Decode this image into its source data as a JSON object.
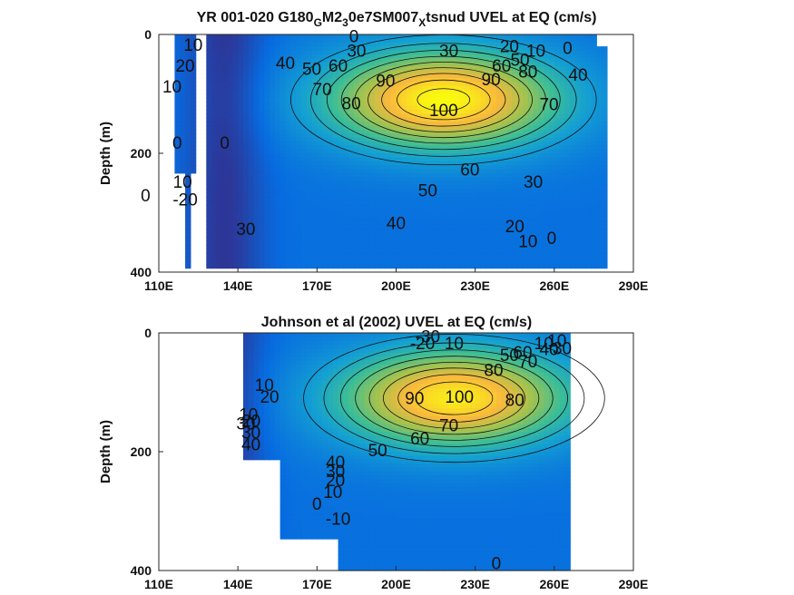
{
  "chart_data": [
    {
      "type": "heatmap",
      "title": "YR 001-020 G180_GM2_30e7SM007_Xtsnud UVEL at EQ (cm/s)",
      "title_parts": {
        "a": "YR 001-020 G180",
        "sub1": "G",
        "b": "M2",
        "sub2": "3",
        "c": "0e7SM007",
        "sub3": "X",
        "d": "tsnud UVEL at EQ (cm/s)"
      },
      "xlabel": "",
      "ylabel": "Depth (m)",
      "xlim": [
        110,
        290
      ],
      "ylim": [
        0,
        400
      ],
      "x_ticks": [
        {
          "v": 110,
          "label": "110E"
        },
        {
          "v": 140,
          "label": "140E"
        },
        {
          "v": 170,
          "label": "170E"
        },
        {
          "v": 200,
          "label": "200E"
        },
        {
          "v": 230,
          "label": "230E"
        },
        {
          "v": 260,
          "label": "260E"
        },
        {
          "v": 290,
          "label": "290E"
        }
      ],
      "y_ticks": [
        {
          "v": 0,
          "label": "0"
        },
        {
          "v": 200,
          "label": "200"
        },
        {
          "v": 400,
          "label": "400"
        }
      ],
      "core": {
        "x": 218,
        "y": 110,
        "max": 105
      },
      "contour_labels": [
        {
          "x": 123,
          "y": 20,
          "text": "10"
        },
        {
          "x": 120,
          "y": 55,
          "text": "20"
        },
        {
          "x": 115,
          "y": 90,
          "text": "10"
        },
        {
          "x": 117,
          "y": 185,
          "text": "0"
        },
        {
          "x": 119,
          "y": 250,
          "text": "10"
        },
        {
          "x": 120,
          "y": 280,
          "text": "-20"
        },
        {
          "x": 105,
          "y": 273,
          "text": "0"
        },
        {
          "x": 143,
          "y": 330,
          "text": "30"
        },
        {
          "x": 158,
          "y": 50,
          "text": "40"
        },
        {
          "x": 168,
          "y": 60,
          "text": "50"
        },
        {
          "x": 178,
          "y": 55,
          "text": "60"
        },
        {
          "x": 172,
          "y": 95,
          "text": "70"
        },
        {
          "x": 183,
          "y": 118,
          "text": "80"
        },
        {
          "x": 196,
          "y": 80,
          "text": "90"
        },
        {
          "x": 218,
          "y": 130,
          "text": "100"
        },
        {
          "x": 184,
          "y": 5,
          "text": "0"
        },
        {
          "x": 185,
          "y": 30,
          "text": "30"
        },
        {
          "x": 220,
          "y": 30,
          "text": "30"
        },
        {
          "x": 240,
          "y": 55,
          "text": "60"
        },
        {
          "x": 236,
          "y": 78,
          "text": "90"
        },
        {
          "x": 250,
          "y": 65,
          "text": "80"
        },
        {
          "x": 247,
          "y": 45,
          "text": "50"
        },
        {
          "x": 253,
          "y": 30,
          "text": "10"
        },
        {
          "x": 243,
          "y": 22,
          "text": "20"
        },
        {
          "x": 265,
          "y": 25,
          "text": "0"
        },
        {
          "x": 269,
          "y": 70,
          "text": "40"
        },
        {
          "x": 258,
          "y": 120,
          "text": "70"
        },
        {
          "x": 228,
          "y": 230,
          "text": "60"
        },
        {
          "x": 212,
          "y": 265,
          "text": "50"
        },
        {
          "x": 200,
          "y": 320,
          "text": "40"
        },
        {
          "x": 252,
          "y": 250,
          "text": "30"
        },
        {
          "x": 245,
          "y": 325,
          "text": "20"
        },
        {
          "x": 250,
          "y": 350,
          "text": "10"
        },
        {
          "x": 259,
          "y": 345,
          "text": "0"
        },
        {
          "x": 135,
          "y": 185,
          "text": "0"
        }
      ]
    },
    {
      "type": "heatmap",
      "title": "Johnson et al (2002) UVEL at EQ (cm/s)",
      "xlabel": "",
      "ylabel": "Depth (m)",
      "xlim": [
        110,
        290
      ],
      "ylim": [
        0,
        400
      ],
      "x_ticks": [
        {
          "v": 110,
          "label": "110E"
        },
        {
          "v": 140,
          "label": "140E"
        },
        {
          "v": 170,
          "label": "170E"
        },
        {
          "v": 200,
          "label": "200E"
        },
        {
          "v": 230,
          "label": "230E"
        },
        {
          "v": 260,
          "label": "260E"
        },
        {
          "v": 290,
          "label": "290E"
        }
      ],
      "y_ticks": [
        {
          "v": 0,
          "label": "0"
        },
        {
          "v": 200,
          "label": "200"
        },
        {
          "v": 400,
          "label": "400"
        }
      ],
      "core": {
        "x": 222,
        "y": 110,
        "max": 100
      },
      "contour_labels": [
        {
          "x": 212,
          "y": 8,
          "text": "-30"
        },
        {
          "x": 210,
          "y": 20,
          "text": "-20"
        },
        {
          "x": 222,
          "y": 20,
          "text": "10"
        },
        {
          "x": 150,
          "y": 90,
          "text": "10"
        },
        {
          "x": 152,
          "y": 110,
          "text": "20"
        },
        {
          "x": 144,
          "y": 140,
          "text": "10"
        },
        {
          "x": 145,
          "y": 150,
          "text": "20"
        },
        {
          "x": 143,
          "y": 155,
          "text": "30"
        },
        {
          "x": 145,
          "y": 170,
          "text": "30"
        },
        {
          "x": 145,
          "y": 190,
          "text": "40"
        },
        {
          "x": 177,
          "y": 220,
          "text": "40"
        },
        {
          "x": 177,
          "y": 235,
          "text": "30"
        },
        {
          "x": 177,
          "y": 250,
          "text": "20"
        },
        {
          "x": 176,
          "y": 270,
          "text": "10"
        },
        {
          "x": 170,
          "y": 290,
          "text": "0"
        },
        {
          "x": 178,
          "y": 315,
          "text": "-10"
        },
        {
          "x": 193,
          "y": 200,
          "text": "50"
        },
        {
          "x": 209,
          "y": 180,
          "text": "60"
        },
        {
          "x": 220,
          "y": 158,
          "text": "70"
        },
        {
          "x": 207,
          "y": 112,
          "text": "90"
        },
        {
          "x": 224,
          "y": 110,
          "text": "100"
        },
        {
          "x": 245,
          "y": 115,
          "text": "80"
        },
        {
          "x": 237,
          "y": 65,
          "text": "80"
        },
        {
          "x": 243,
          "y": 40,
          "text": "50"
        },
        {
          "x": 248,
          "y": 35,
          "text": "60"
        },
        {
          "x": 250,
          "y": 50,
          "text": "70"
        },
        {
          "x": 258,
          "y": 30,
          "text": "40"
        },
        {
          "x": 263,
          "y": 28,
          "text": "30"
        },
        {
          "x": 261,
          "y": 15,
          "text": "10"
        },
        {
          "x": 256,
          "y": 20,
          "text": "10"
        },
        {
          "x": 238,
          "y": 390,
          "text": "0"
        }
      ]
    }
  ]
}
